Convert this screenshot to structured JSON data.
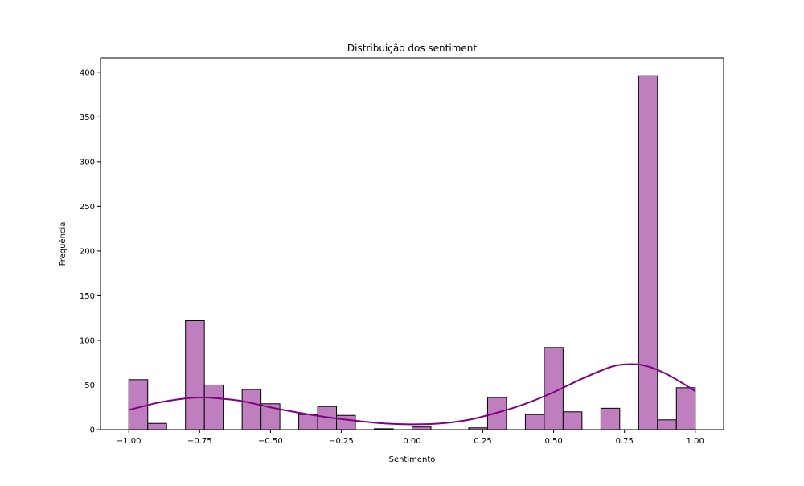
{
  "chart_data": {
    "type": "bar",
    "title": "Distribuição dos sentiment",
    "xlabel": "Sentimento",
    "ylabel": "Frequência",
    "xlim": [
      -1.1,
      1.1
    ],
    "ylim": [
      0,
      416
    ],
    "xticks": [
      -1.0,
      -0.75,
      -0.5,
      -0.25,
      0.0,
      0.25,
      0.5,
      0.75,
      1.0
    ],
    "xtick_labels": [
      "−1.00",
      "−0.75",
      "−0.50",
      "−0.25",
      "0.00",
      "0.25",
      "0.50",
      "0.75",
      "1.00"
    ],
    "yticks": [
      0,
      50,
      100,
      150,
      200,
      250,
      300,
      350,
      400
    ],
    "ytick_labels": [
      "0",
      "50",
      "100",
      "150",
      "200",
      "250",
      "300",
      "350",
      "400"
    ],
    "bin_edges": [
      -1.0,
      -0.9333,
      -0.8667,
      -0.8,
      -0.7333,
      -0.6667,
      -0.6,
      -0.5333,
      -0.4667,
      -0.4,
      -0.3333,
      -0.2667,
      -0.2,
      -0.1333,
      -0.0667,
      0.0,
      0.0667,
      0.1333,
      0.2,
      0.2667,
      0.3333,
      0.4,
      0.4667,
      0.5333,
      0.6,
      0.6667,
      0.7333,
      0.8,
      0.8667,
      0.9333,
      1.0
    ],
    "counts": [
      56,
      7,
      0,
      122,
      50,
      0,
      45,
      29,
      0,
      17,
      26,
      16,
      0,
      1,
      0,
      3,
      0,
      0,
      2,
      36,
      0,
      17,
      92,
      20,
      0,
      24,
      0,
      396,
      11,
      47
    ],
    "kde": {
      "x": [
        -1.0,
        -0.9,
        -0.8,
        -0.75,
        -0.7,
        -0.6,
        -0.5,
        -0.4,
        -0.3,
        -0.2,
        -0.1,
        0.0,
        0.1,
        0.2,
        0.3,
        0.4,
        0.5,
        0.6,
        0.7,
        0.75,
        0.8,
        0.85,
        0.9,
        0.95,
        1.0
      ],
      "y": [
        22,
        30,
        35,
        36,
        35.5,
        32,
        25,
        19,
        14,
        10,
        7,
        6,
        7,
        11,
        19,
        29,
        42,
        57,
        70,
        73,
        73,
        69,
        62,
        53,
        43
      ]
    },
    "colors": {
      "bar_fill": "#bf7fbf",
      "bar_edge": "#000000",
      "kde_line": "#800080"
    },
    "grid": false,
    "legend": "none"
  }
}
